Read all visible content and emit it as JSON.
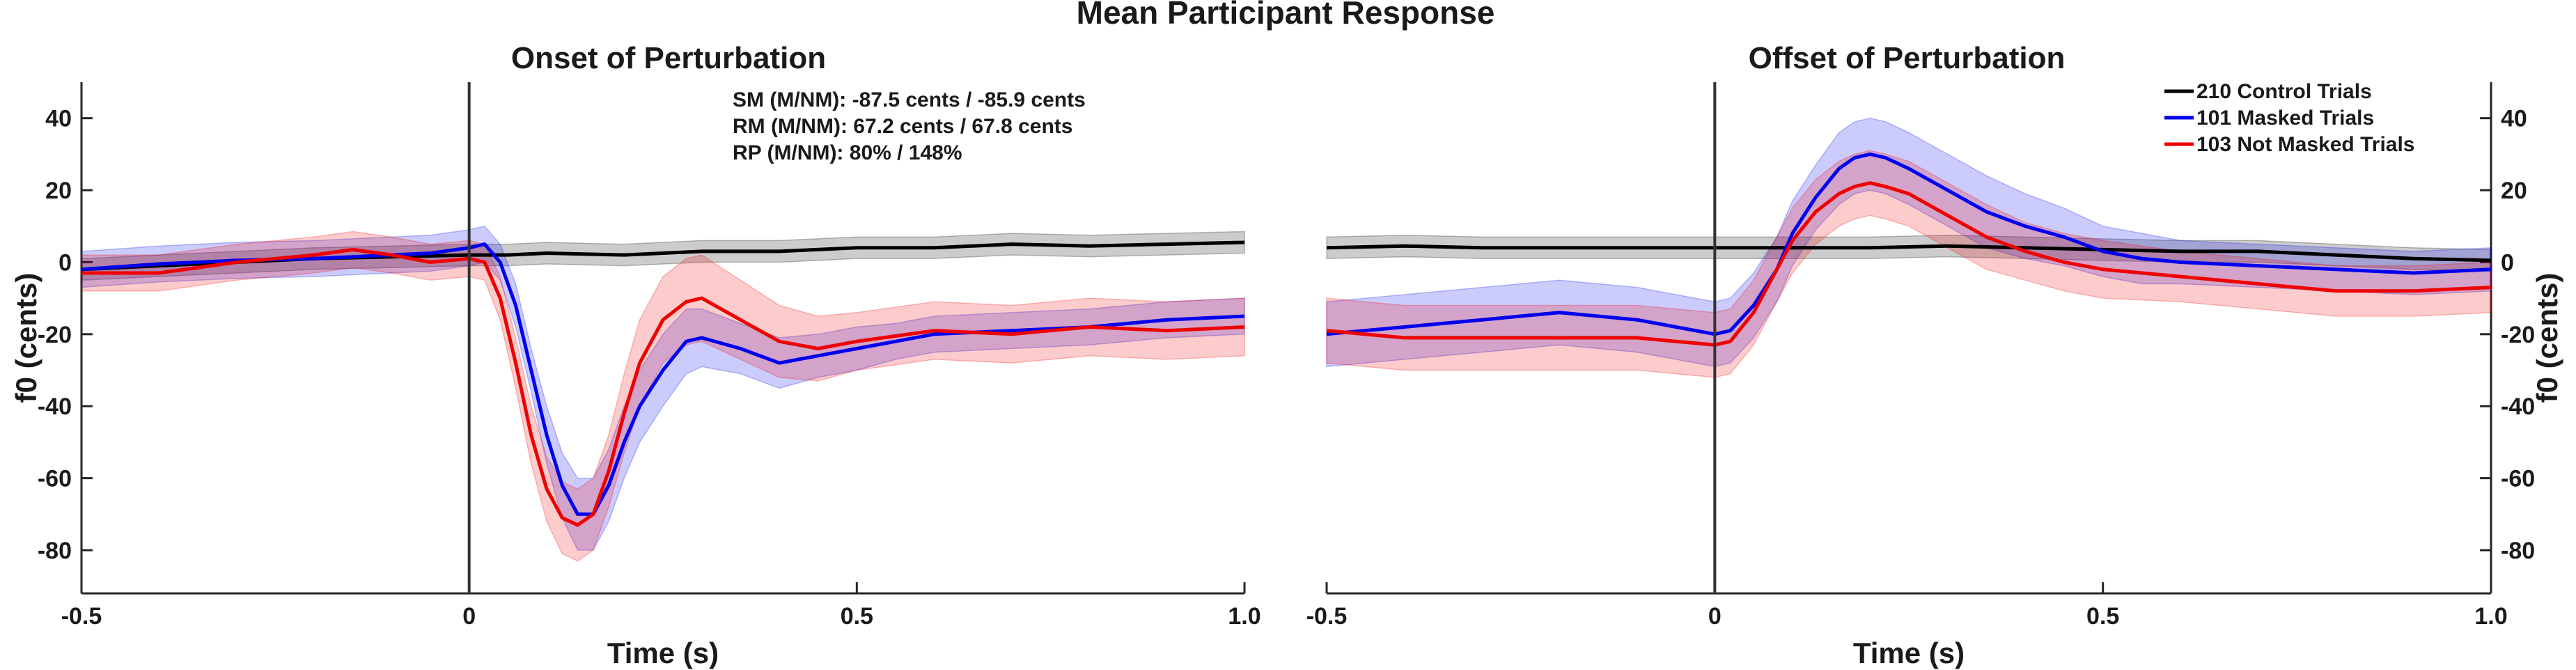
{
  "figure_title": "Mean Participant Response",
  "colors": {
    "control": "#000000",
    "masked": "#0000ee",
    "not_masked": "#ee0000",
    "axis": "#262626"
  },
  "legend": {
    "placement": "top-right",
    "entries": [
      "210 Control Trials",
      "101 Masked Trials",
      "103 Not Masked Trials"
    ]
  },
  "annotations": [
    "SM (M/NM): -87.5 cents / -85.9 cents",
    "RM (M/NM): 67.2 cents / 67.8 cents",
    "RP (M/NM): 80% / 148%"
  ],
  "chart_data": [
    {
      "type": "line",
      "title": "Onset of Perturbation",
      "xlabel": "Time (s)",
      "ylabel": "f0 (cents)",
      "xlim": [
        -0.5,
        1.0
      ],
      "ylim": [
        -92,
        50
      ],
      "xticks": [
        -0.5,
        0,
        0.5,
        1.0
      ],
      "xtick_labels": [
        "-0.5",
        "0",
        "0.5",
        "1.0"
      ],
      "yticks": [
        40,
        20,
        0,
        -20,
        -40,
        -60,
        -80
      ],
      "ytick_labels": [
        "40",
        "20",
        "0",
        "-20",
        "-40",
        "-60",
        "-80"
      ],
      "yaxis_side": "left",
      "vline_x": 0,
      "grid": false,
      "series": [
        {
          "name": "210 Control Trials",
          "color": "#000000",
          "x": [
            -0.5,
            -0.4,
            -0.3,
            -0.2,
            -0.1,
            0,
            0.05,
            0.1,
            0.2,
            0.3,
            0.4,
            0.5,
            0.6,
            0.7,
            0.8,
            0.9,
            1.0
          ],
          "y": [
            -2,
            -1,
            0,
            1,
            1.5,
            2,
            2,
            2.5,
            2,
            3,
            3,
            4,
            4,
            5,
            4.5,
            5,
            5.5
          ],
          "band": 3
        },
        {
          "name": "101 Masked Trials",
          "color": "#0000ee",
          "x": [
            -0.5,
            -0.4,
            -0.3,
            -0.2,
            -0.1,
            -0.05,
            0,
            0.02,
            0.04,
            0.06,
            0.08,
            0.1,
            0.12,
            0.14,
            0.16,
            0.18,
            0.2,
            0.22,
            0.25,
            0.28,
            0.3,
            0.35,
            0.4,
            0.45,
            0.5,
            0.55,
            0.6,
            0.7,
            0.8,
            0.9,
            1.0
          ],
          "y": [
            -2,
            -0.5,
            0.5,
            1,
            2,
            2.5,
            4,
            5,
            0,
            -12,
            -30,
            -48,
            -62,
            -70,
            -70,
            -62,
            -50,
            -40,
            -30,
            -22,
            -21,
            -24,
            -28,
            -26,
            -24,
            -22,
            -20,
            -19,
            -18,
            -16,
            -15
          ],
          "band": [
            5,
            5,
            5,
            5,
            5,
            5,
            5,
            5,
            5,
            6,
            6,
            8,
            9,
            10,
            10,
            10,
            10,
            10,
            10,
            9,
            8,
            7,
            7,
            6,
            6,
            5,
            5,
            5,
            5,
            5,
            5
          ]
        },
        {
          "name": "103 Not Masked Trials",
          "color": "#ee0000",
          "x": [
            -0.5,
            -0.4,
            -0.3,
            -0.2,
            -0.15,
            -0.1,
            -0.05,
            0,
            0.02,
            0.04,
            0.06,
            0.08,
            0.1,
            0.12,
            0.14,
            0.16,
            0.18,
            0.2,
            0.22,
            0.25,
            0.28,
            0.3,
            0.35,
            0.4,
            0.45,
            0.5,
            0.6,
            0.7,
            0.8,
            0.9,
            1.0
          ],
          "y": [
            -3,
            -3,
            0,
            2,
            3.5,
            2,
            0,
            1,
            0,
            -10,
            -28,
            -48,
            -63,
            -71,
            -73,
            -70,
            -58,
            -42,
            -28,
            -16,
            -11,
            -10,
            -16,
            -22,
            -24,
            -22,
            -19,
            -20,
            -18,
            -19,
            -18
          ],
          "band": [
            5,
            5,
            5,
            5,
            5,
            5,
            5,
            5,
            5,
            6,
            7,
            8,
            9,
            10,
            10,
            10,
            10,
            11,
            12,
            12,
            12,
            12,
            11,
            10,
            9,
            8,
            8,
            8,
            8,
            8,
            8
          ]
        }
      ]
    },
    {
      "type": "line",
      "title": "Offset of Perturbation",
      "xlabel": "Time (s)",
      "ylabel": "f0 (cents)",
      "xlim": [
        -0.5,
        1.0
      ],
      "ylim": [
        -92,
        50
      ],
      "xticks": [
        -0.5,
        0,
        0.5,
        1.0
      ],
      "xtick_labels": [
        "-0.5",
        "0",
        "0.5",
        "1.0"
      ],
      "yticks": [
        40,
        20,
        0,
        -20,
        -40,
        -60,
        -80
      ],
      "ytick_labels": [
        "40",
        "20",
        "0",
        "-20",
        "-40",
        "-60",
        "-80"
      ],
      "yaxis_side": "right",
      "vline_x": 0,
      "grid": false,
      "series": [
        {
          "name": "210 Control Trials",
          "color": "#000000",
          "x": [
            -0.5,
            -0.4,
            -0.3,
            -0.2,
            -0.1,
            0,
            0.1,
            0.2,
            0.3,
            0.4,
            0.5,
            0.6,
            0.7,
            0.8,
            0.9,
            1.0
          ],
          "y": [
            4,
            4.5,
            4,
            4,
            4,
            4,
            4,
            4,
            4.5,
            4,
            3.5,
            3,
            3,
            2,
            1,
            0.5
          ],
          "band": 3
        },
        {
          "name": "101 Masked Trials",
          "color": "#0000ee",
          "x": [
            -0.5,
            -0.4,
            -0.3,
            -0.2,
            -0.1,
            -0.05,
            0,
            0.02,
            0.05,
            0.08,
            0.1,
            0.13,
            0.16,
            0.18,
            0.2,
            0.22,
            0.25,
            0.3,
            0.35,
            0.4,
            0.45,
            0.5,
            0.55,
            0.6,
            0.7,
            0.8,
            0.9,
            1.0
          ],
          "y": [
            -20,
            -18,
            -16,
            -14,
            -16,
            -18,
            -20,
            -19,
            -12,
            -2,
            8,
            18,
            26,
            29,
            30,
            29,
            26,
            20,
            14,
            10,
            7,
            3,
            1,
            0,
            -1,
            -2,
            -3,
            -2
          ],
          "band": [
            9,
            9,
            9,
            9,
            9,
            9,
            9,
            9,
            9,
            9,
            9,
            9,
            10,
            10,
            10,
            10,
            10,
            10,
            10,
            9,
            8,
            7,
            7,
            6,
            6,
            6,
            6,
            6
          ]
        },
        {
          "name": "103 Not Masked Trials",
          "color": "#ee0000",
          "x": [
            -0.5,
            -0.4,
            -0.3,
            -0.2,
            -0.1,
            -0.05,
            0,
            0.02,
            0.05,
            0.08,
            0.1,
            0.13,
            0.16,
            0.18,
            0.2,
            0.22,
            0.25,
            0.3,
            0.35,
            0.4,
            0.45,
            0.5,
            0.6,
            0.7,
            0.8,
            0.9,
            1.0
          ],
          "y": [
            -19,
            -21,
            -21,
            -21,
            -21,
            -22,
            -23,
            -22,
            -14,
            -2,
            6,
            14,
            19,
            21,
            22,
            21,
            19,
            13,
            7,
            3,
            0,
            -2,
            -4,
            -6,
            -8,
            -8,
            -7
          ],
          "band": [
            9,
            9,
            9,
            9,
            9,
            9,
            9,
            9,
            9,
            9,
            9,
            9,
            9,
            9,
            9,
            9,
            9,
            9,
            9,
            8,
            8,
            8,
            7,
            7,
            7,
            7,
            7
          ]
        }
      ]
    }
  ]
}
